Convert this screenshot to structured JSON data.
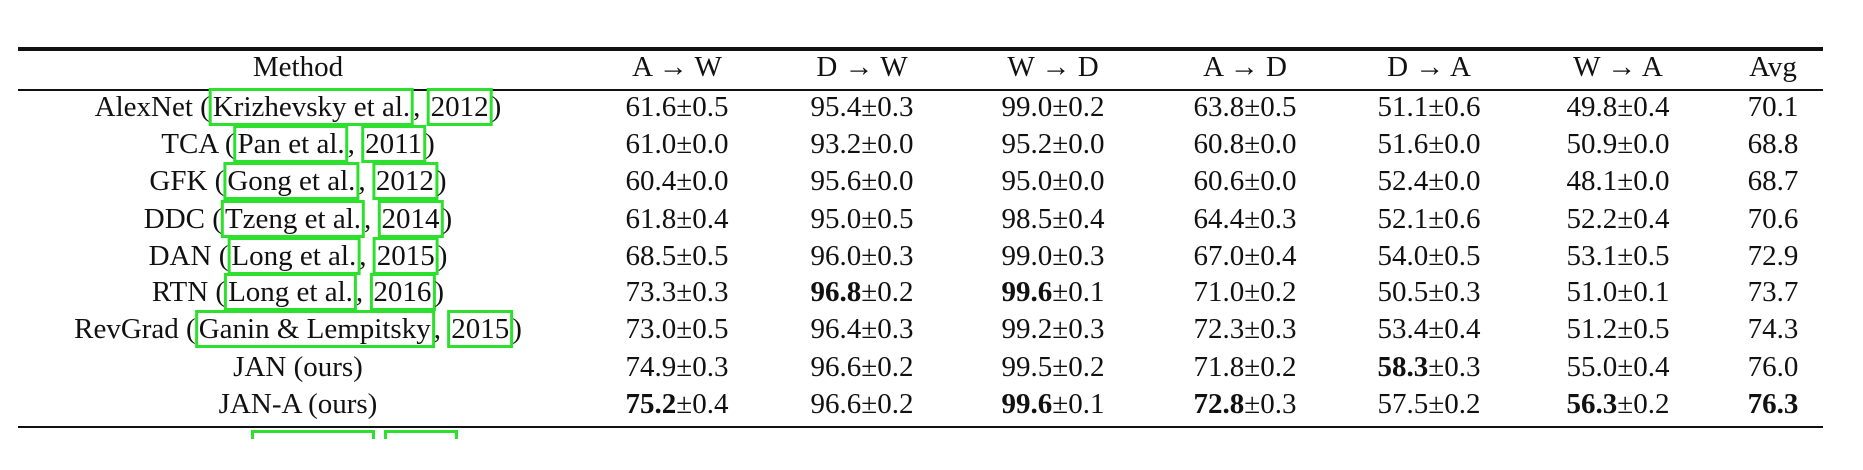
{
  "table": {
    "pm": "±",
    "headers": [
      "Method",
      "A → W",
      "D → W",
      "W → D",
      "A → D",
      "D → A",
      "W → A",
      "Avg"
    ],
    "rows": [
      {
        "method": "AlexNet",
        "author": "Krizhevsky et al.",
        "year": "2012",
        "cells": [
          [
            "61.6",
            "0.5",
            false
          ],
          [
            "95.4",
            "0.3",
            false
          ],
          [
            "99.0",
            "0.2",
            false
          ],
          [
            "63.8",
            "0.5",
            false
          ],
          [
            "51.1",
            "0.6",
            false
          ],
          [
            "49.8",
            "0.4",
            false
          ]
        ],
        "avg": "70.1",
        "avg_bold": false
      },
      {
        "method": "TCA",
        "author": "Pan et al.",
        "year": "2011",
        "cells": [
          [
            "61.0",
            "0.0",
            false
          ],
          [
            "93.2",
            "0.0",
            false
          ],
          [
            "95.2",
            "0.0",
            false
          ],
          [
            "60.8",
            "0.0",
            false
          ],
          [
            "51.6",
            "0.0",
            false
          ],
          [
            "50.9",
            "0.0",
            false
          ]
        ],
        "avg": "68.8",
        "avg_bold": false
      },
      {
        "method": "GFK",
        "author": "Gong et al.",
        "year": "2012",
        "cells": [
          [
            "60.4",
            "0.0",
            false
          ],
          [
            "95.6",
            "0.0",
            false
          ],
          [
            "95.0",
            "0.0",
            false
          ],
          [
            "60.6",
            "0.0",
            false
          ],
          [
            "52.4",
            "0.0",
            false
          ],
          [
            "48.1",
            "0.0",
            false
          ]
        ],
        "avg": "68.7",
        "avg_bold": false
      },
      {
        "method": "DDC",
        "author": "Tzeng et al.",
        "year": "2014",
        "cells": [
          [
            "61.8",
            "0.4",
            false
          ],
          [
            "95.0",
            "0.5",
            false
          ],
          [
            "98.5",
            "0.4",
            false
          ],
          [
            "64.4",
            "0.3",
            false
          ],
          [
            "52.1",
            "0.6",
            false
          ],
          [
            "52.2",
            "0.4",
            false
          ]
        ],
        "avg": "70.6",
        "avg_bold": false
      },
      {
        "method": "DAN",
        "author": "Long et al.",
        "year": "2015",
        "cells": [
          [
            "68.5",
            "0.5",
            false
          ],
          [
            "96.0",
            "0.3",
            false
          ],
          [
            "99.0",
            "0.3",
            false
          ],
          [
            "67.0",
            "0.4",
            false
          ],
          [
            "54.0",
            "0.5",
            false
          ],
          [
            "53.1",
            "0.5",
            false
          ]
        ],
        "avg": "72.9",
        "avg_bold": false
      },
      {
        "method": "RTN",
        "author": "Long et al.",
        "year": "2016",
        "cells": [
          [
            "73.3",
            "0.3",
            false
          ],
          [
            "96.8",
            "0.2",
            true
          ],
          [
            "99.6",
            "0.1",
            true
          ],
          [
            "71.0",
            "0.2",
            false
          ],
          [
            "50.5",
            "0.3",
            false
          ],
          [
            "51.0",
            "0.1",
            false
          ]
        ],
        "avg": "73.7",
        "avg_bold": false
      },
      {
        "method": "RevGrad",
        "author": "Ganin & Lempitsky",
        "year": "2015",
        "cells": [
          [
            "73.0",
            "0.5",
            false
          ],
          [
            "96.4",
            "0.3",
            false
          ],
          [
            "99.2",
            "0.3",
            false
          ],
          [
            "72.3",
            "0.3",
            false
          ],
          [
            "53.4",
            "0.4",
            false
          ],
          [
            "51.2",
            "0.5",
            false
          ]
        ],
        "avg": "74.3",
        "avg_bold": false
      },
      {
        "method": "JAN (ours)",
        "author": null,
        "year": null,
        "cells": [
          [
            "74.9",
            "0.3",
            false
          ],
          [
            "96.6",
            "0.2",
            false
          ],
          [
            "99.5",
            "0.2",
            false
          ],
          [
            "71.8",
            "0.2",
            false
          ],
          [
            "58.3",
            "0.3",
            true
          ],
          [
            "55.0",
            "0.4",
            false
          ]
        ],
        "avg": "76.0",
        "avg_bold": false
      },
      {
        "method": "JAN-A (ours)",
        "author": null,
        "year": null,
        "cells": [
          [
            "75.2",
            "0.4",
            true
          ],
          [
            "96.6",
            "0.2",
            false
          ],
          [
            "99.6",
            "0.1",
            true
          ],
          [
            "72.8",
            "0.3",
            true
          ],
          [
            "57.5",
            "0.2",
            false
          ],
          [
            "56.3",
            "0.2",
            true
          ]
        ],
        "avg": "76.3",
        "avg_bold": true
      }
    ]
  },
  "colors": {
    "citation_box": "#2ee02e",
    "text": "#111111"
  }
}
